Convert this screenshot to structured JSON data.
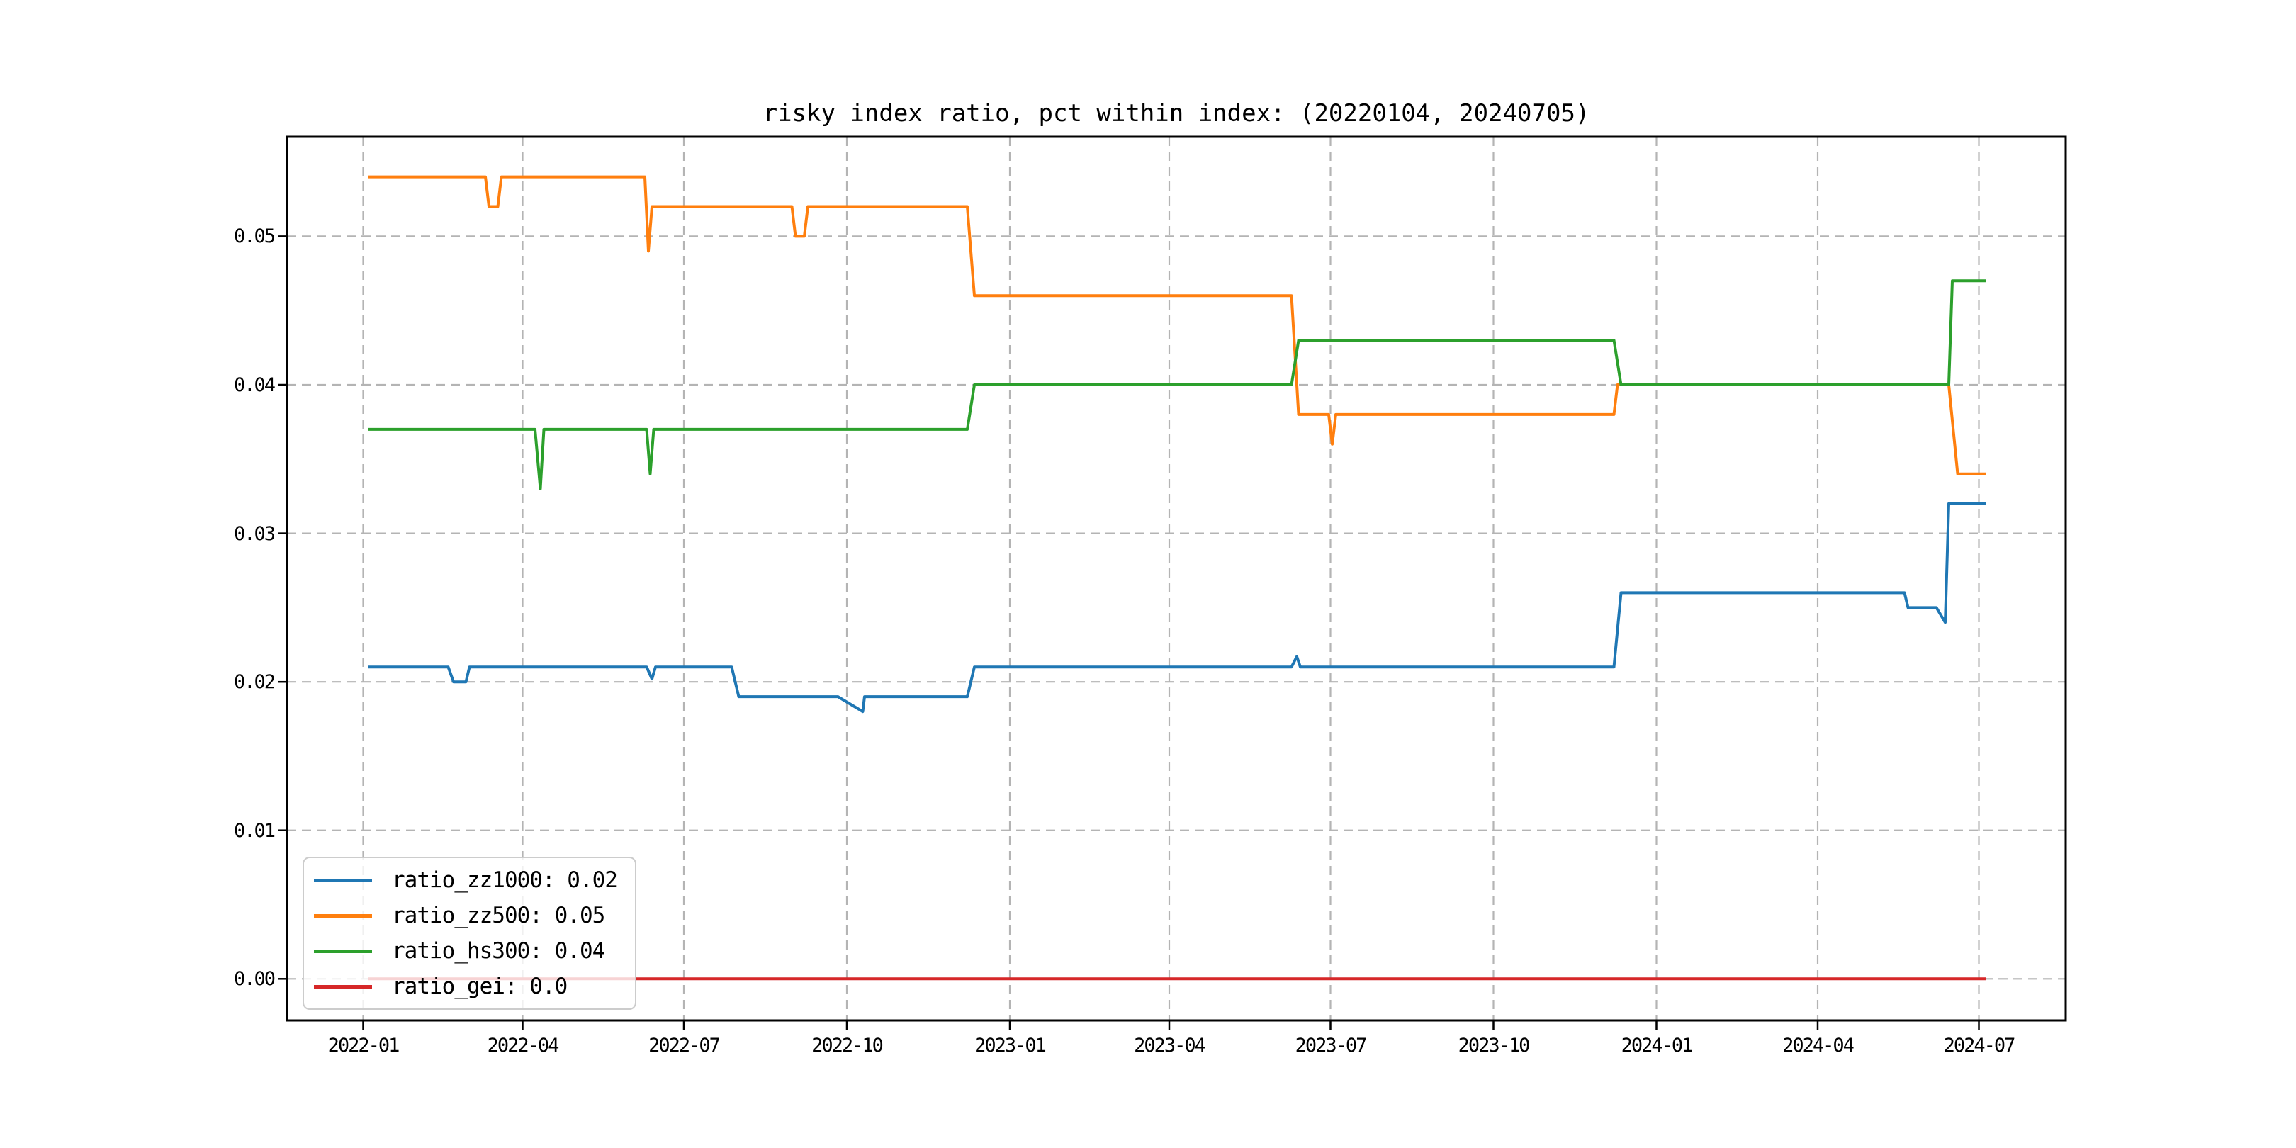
{
  "figure": {
    "background": "#ffffff"
  },
  "chart_data": {
    "type": "line",
    "title": "risky index ratio, pct within index: (20220104, 20240705)",
    "xlabel": "",
    "ylabel": "",
    "grid": true,
    "grid_color": "#b4b4b4",
    "spine_color": "#000000",
    "legend_position": "lower left",
    "x_range": [
      "2021-11-19",
      "2024-08-19"
    ],
    "ylim": [
      -0.0028,
      0.0567
    ],
    "x_ticks": [
      {
        "date": "2022-01-01",
        "label": "2022-01"
      },
      {
        "date": "2022-04-01",
        "label": "2022-04"
      },
      {
        "date": "2022-07-01",
        "label": "2022-07"
      },
      {
        "date": "2022-10-01",
        "label": "2022-10"
      },
      {
        "date": "2023-01-01",
        "label": "2023-01"
      },
      {
        "date": "2023-04-01",
        "label": "2023-04"
      },
      {
        "date": "2023-07-01",
        "label": "2023-07"
      },
      {
        "date": "2023-10-01",
        "label": "2023-10"
      },
      {
        "date": "2024-01-01",
        "label": "2024-01"
      },
      {
        "date": "2024-04-01",
        "label": "2024-04"
      },
      {
        "date": "2024-07-01",
        "label": "2024-07"
      }
    ],
    "y_ticks": [
      {
        "value": 0.0,
        "label": "0.00"
      },
      {
        "value": 0.01,
        "label": "0.01"
      },
      {
        "value": 0.02,
        "label": "0.02"
      },
      {
        "value": 0.03,
        "label": "0.03"
      },
      {
        "value": 0.04,
        "label": "0.04"
      },
      {
        "value": 0.05,
        "label": "0.05"
      }
    ],
    "legend_items": [
      {
        "label": "ratio_zz1000: 0.02",
        "color": "#1f77b4"
      },
      {
        "label": "ratio_zz500: 0.05",
        "color": "#ff7f0e"
      },
      {
        "label": "ratio_hs300: 0.04",
        "color": "#2ca02c"
      },
      {
        "label": "ratio_gei: 0.0",
        "color": "#d62728"
      }
    ],
    "series": [
      {
        "name": "ratio_zz1000",
        "color": "#1f77b4",
        "points": [
          [
            "2022-01-04",
            0.021
          ],
          [
            "2022-02-18",
            0.021
          ],
          [
            "2022-02-21",
            0.02
          ],
          [
            "2022-02-28",
            0.02
          ],
          [
            "2022-03-02",
            0.021
          ],
          [
            "2022-06-10",
            0.021
          ],
          [
            "2022-06-13",
            0.0202
          ],
          [
            "2022-06-15",
            0.021
          ],
          [
            "2022-07-28",
            0.021
          ],
          [
            "2022-08-01",
            0.019
          ],
          [
            "2022-09-26",
            0.019
          ],
          [
            "2022-10-10",
            0.018
          ],
          [
            "2022-10-11",
            0.019
          ],
          [
            "2022-12-08",
            0.019
          ],
          [
            "2022-12-12",
            0.021
          ],
          [
            "2023-06-09",
            0.021
          ],
          [
            "2023-06-12",
            0.0217
          ],
          [
            "2023-06-14",
            0.021
          ],
          [
            "2023-12-08",
            0.021
          ],
          [
            "2023-12-12",
            0.026
          ],
          [
            "2024-05-20",
            0.026
          ],
          [
            "2024-05-22",
            0.025
          ],
          [
            "2024-06-07",
            0.025
          ],
          [
            "2024-06-12",
            0.024
          ],
          [
            "2024-06-14",
            0.032
          ],
          [
            "2024-07-05",
            0.032
          ]
        ]
      },
      {
        "name": "ratio_zz500",
        "color": "#ff7f0e",
        "points": [
          [
            "2022-01-04",
            0.054
          ],
          [
            "2022-03-11",
            0.054
          ],
          [
            "2022-03-13",
            0.052
          ],
          [
            "2022-03-18",
            0.052
          ],
          [
            "2022-03-20",
            0.054
          ],
          [
            "2022-06-09",
            0.054
          ],
          [
            "2022-06-11",
            0.049
          ],
          [
            "2022-06-13",
            0.052
          ],
          [
            "2022-08-31",
            0.052
          ],
          [
            "2022-09-02",
            0.05
          ],
          [
            "2022-09-07",
            0.05
          ],
          [
            "2022-09-09",
            0.052
          ],
          [
            "2022-12-08",
            0.052
          ],
          [
            "2022-12-12",
            0.046
          ],
          [
            "2023-06-09",
            0.046
          ],
          [
            "2023-06-13",
            0.038
          ],
          [
            "2023-06-30",
            0.038
          ],
          [
            "2023-07-02",
            0.036
          ],
          [
            "2023-07-04",
            0.038
          ],
          [
            "2023-12-08",
            0.038
          ],
          [
            "2023-12-10",
            0.04
          ],
          [
            "2024-06-14",
            0.04
          ],
          [
            "2024-06-19",
            0.034
          ],
          [
            "2024-07-05",
            0.034
          ]
        ]
      },
      {
        "name": "ratio_hs300",
        "color": "#2ca02c",
        "points": [
          [
            "2022-01-04",
            0.037
          ],
          [
            "2022-04-08",
            0.037
          ],
          [
            "2022-04-11",
            0.033
          ],
          [
            "2022-04-13",
            0.037
          ],
          [
            "2022-06-10",
            0.037
          ],
          [
            "2022-06-12",
            0.034
          ],
          [
            "2022-06-14",
            0.037
          ],
          [
            "2022-12-08",
            0.037
          ],
          [
            "2022-12-12",
            0.04
          ],
          [
            "2023-06-09",
            0.04
          ],
          [
            "2023-06-13",
            0.043
          ],
          [
            "2023-12-08",
            0.043
          ],
          [
            "2023-12-12",
            0.04
          ],
          [
            "2024-06-14",
            0.04
          ],
          [
            "2024-06-16",
            0.047
          ],
          [
            "2024-07-05",
            0.047
          ]
        ]
      },
      {
        "name": "ratio_gei",
        "color": "#d62728",
        "points": [
          [
            "2022-01-04",
            0.0
          ],
          [
            "2024-07-05",
            0.0
          ]
        ]
      }
    ]
  }
}
